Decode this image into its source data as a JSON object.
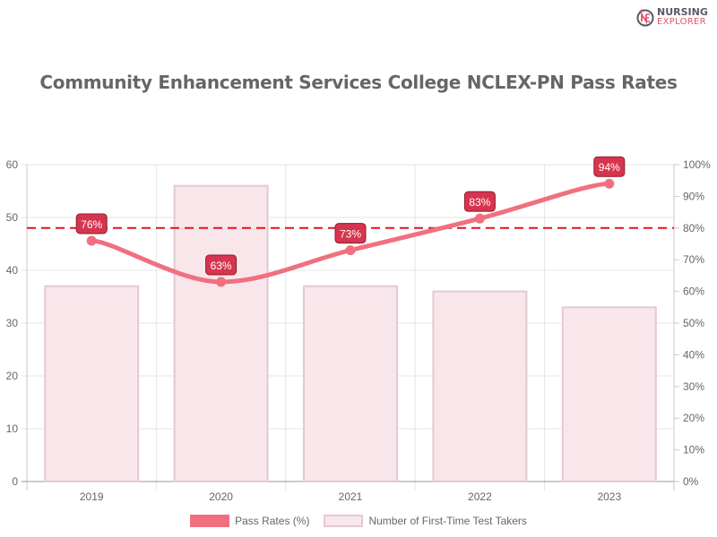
{
  "logo": {
    "line1": "NURSING",
    "line2": "EXPLORER"
  },
  "title": "Community Enhancement Services College NCLEX-PN Pass Rates",
  "colors": {
    "line": "#f07080",
    "bar_fill": "#f8e6eb",
    "bar_border": "#e6c9d0",
    "label_bg": "#d6354f",
    "threshold": "#e0141e"
  },
  "legend": {
    "line_label": "Pass Rates (%)",
    "bar_label": "Number of First-Time Test Takers"
  },
  "chart_data": {
    "type": "bar",
    "title": "Community Enhancement Services College NCLEX-PN Pass Rates",
    "categories": [
      "2019",
      "2020",
      "2021",
      "2022",
      "2023"
    ],
    "series": [
      {
        "name": "Number of First-Time Test Takers",
        "type": "bar",
        "axis": "left",
        "values": [
          37,
          56,
          37,
          36,
          33
        ]
      },
      {
        "name": "Pass Rates (%)",
        "type": "line",
        "axis": "right",
        "values": [
          76,
          63,
          73,
          83,
          94
        ],
        "labels": [
          "76%",
          "63%",
          "73%",
          "83%",
          "94%"
        ]
      }
    ],
    "threshold": {
      "axis": "right",
      "value": 80,
      "style": "dashed"
    },
    "y_left": {
      "min": 0,
      "max": 60,
      "ticks": [
        "0",
        "10",
        "20",
        "30",
        "40",
        "50",
        "60"
      ]
    },
    "y_right": {
      "min": 0,
      "max": 100,
      "ticks": [
        "0%",
        "10%",
        "20%",
        "30%",
        "40%",
        "50%",
        "60%",
        "70%",
        "80%",
        "90%",
        "100%"
      ]
    },
    "xlabel": "",
    "ylabel": "",
    "grid": true,
    "legend_position": "bottom"
  }
}
